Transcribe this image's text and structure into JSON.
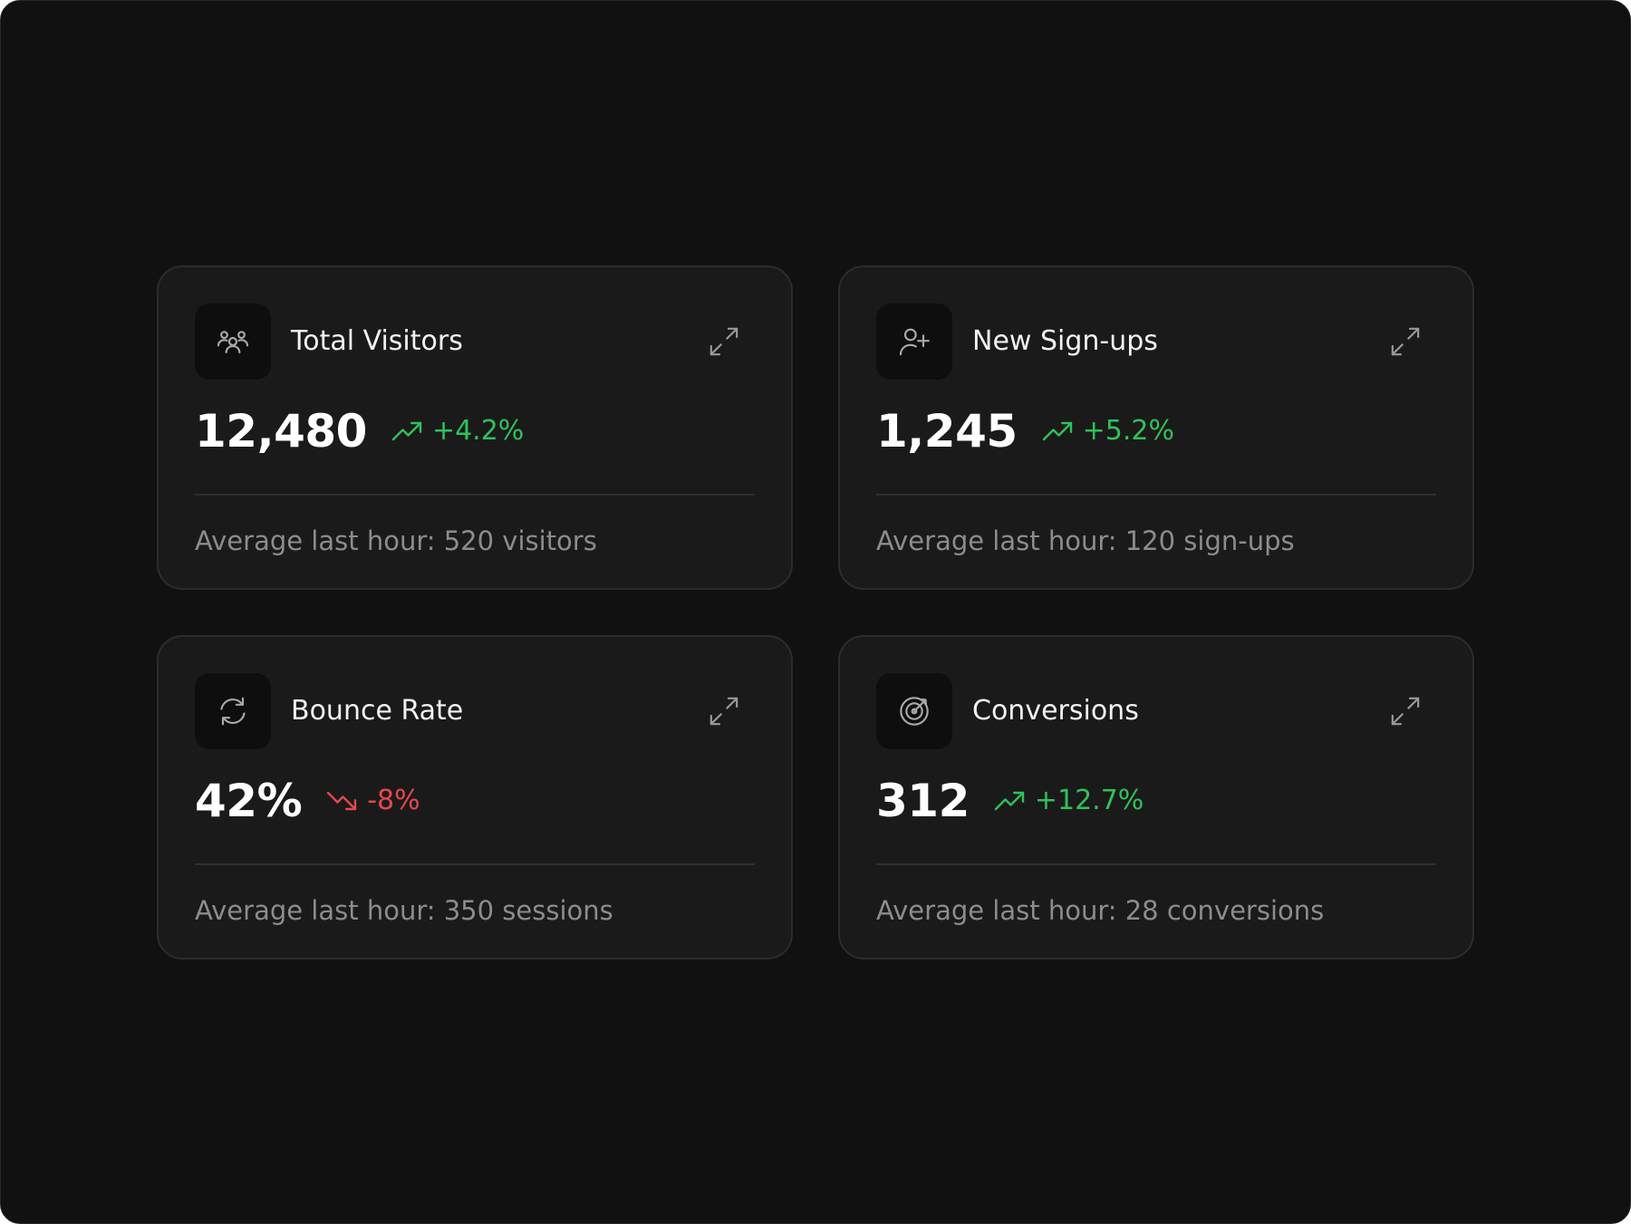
{
  "cards": [
    {
      "icon": "users-icon",
      "title": "Total Visitors",
      "value": "12,480",
      "trend_direction": "up",
      "change": "+4.2%",
      "footnote": "Average last hour: 520 visitors"
    },
    {
      "icon": "user-plus-icon",
      "title": "New Sign-ups",
      "value": "1,245",
      "trend_direction": "up",
      "change": "+5.2%",
      "footnote": "Average last hour: 120 sign-ups"
    },
    {
      "icon": "refresh-icon",
      "title": "Bounce Rate",
      "value": "42%",
      "trend_direction": "down",
      "change": "-8%",
      "footnote": "Average last hour: 350 sessions"
    },
    {
      "icon": "target-icon",
      "title": "Conversions",
      "value": "312",
      "trend_direction": "up",
      "change": "+12.7%",
      "footnote": "Average last hour: 28 conversions"
    }
  ],
  "colors": {
    "background": "#111111",
    "card": "#1a1a1a",
    "positive": "#2fc25b",
    "negative": "#e5484d",
    "muted_text": "#8c8c8c"
  }
}
